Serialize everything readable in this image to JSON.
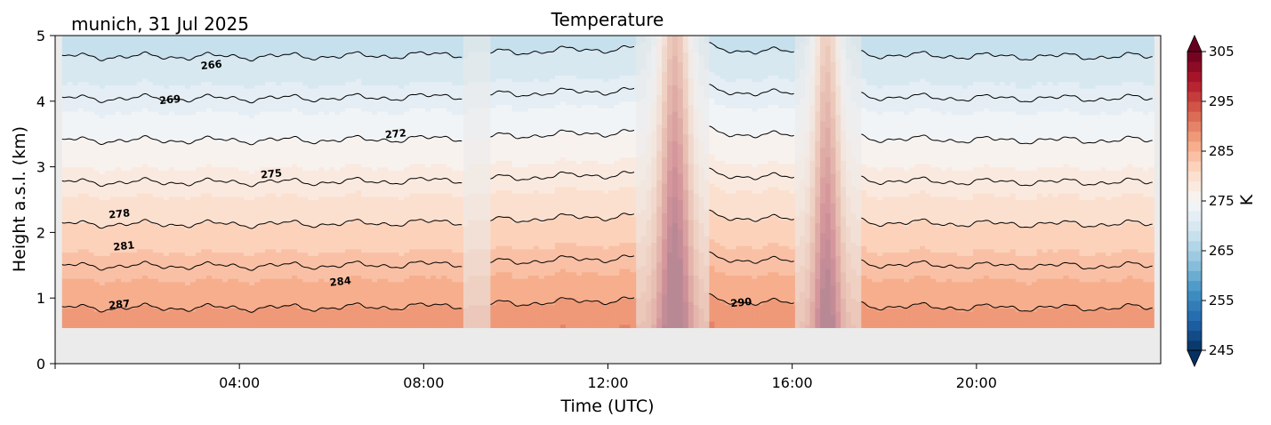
{
  "chart_data": {
    "type": "heatmap",
    "title": "Temperature",
    "location_date": "munich, 31 Jul 2025",
    "xlabel": "Time (UTC)",
    "ylabel": "Height a.s.l. (km)",
    "x_unit": "hours UTC",
    "xlim": [
      0,
      24
    ],
    "ylim": [
      0,
      5
    ],
    "x_tick_values": [
      4,
      8,
      12,
      16,
      20
    ],
    "x_tick_labels": [
      "04:00",
      "08:00",
      "12:00",
      "16:00",
      "20:00"
    ],
    "y_tick_values": [
      0,
      1,
      2,
      3,
      4,
      5
    ],
    "y_tick_labels": [
      "0",
      "1",
      "2",
      "3",
      "4",
      "5"
    ],
    "ground_level_km": 0.55,
    "no_data_fill": "#ebebeb",
    "valid_segments": [
      {
        "start": 0.15,
        "end": 8.85
      },
      {
        "start": 9.45,
        "end": 12.6
      },
      {
        "start": 14.2,
        "end": 16.05
      },
      {
        "start": 17.5,
        "end": 23.85
      }
    ],
    "faded_intervals": [
      {
        "start": 8.85,
        "end": 9.45
      },
      {
        "start": 12.6,
        "end": 14.2
      },
      {
        "start": 16.05,
        "end": 17.5
      }
    ],
    "surface_temperature_K": 291,
    "lapse_rate_K_per_km": 4.7,
    "warm_plumes": [
      {
        "center": 13.45,
        "width": 0.35,
        "lift_km": 4.6
      },
      {
        "center": 16.75,
        "width": 0.3,
        "lift_km": 4.0
      }
    ],
    "contour_levels_K": [
      266,
      269,
      272,
      275,
      278,
      281,
      284,
      287,
      290
    ],
    "contour_labels": [
      {
        "text": "266",
        "x": 3.4,
        "y": 4.5
      },
      {
        "text": "269",
        "x": 2.5,
        "y": 3.97
      },
      {
        "text": "272",
        "x": 7.4,
        "y": 3.45
      },
      {
        "text": "275",
        "x": 4.7,
        "y": 2.84
      },
      {
        "text": "278",
        "x": 1.4,
        "y": 2.23
      },
      {
        "text": "281",
        "x": 1.5,
        "y": 1.74
      },
      {
        "text": "284",
        "x": 6.2,
        "y": 1.2
      },
      {
        "text": "287",
        "x": 1.4,
        "y": 0.85
      },
      {
        "text": "290",
        "x": 14.9,
        "y": 0.88
      }
    ],
    "colorbar": {
      "label": "K",
      "min": 245,
      "max": 305,
      "tick_values": [
        245,
        255,
        265,
        275,
        285,
        295,
        305
      ],
      "tick_labels": [
        "245",
        "255",
        "265",
        "275",
        "285",
        "295",
        "305"
      ],
      "colormap": "RdBu_r",
      "extend": "both",
      "levels": 30
    },
    "colormap_stops": [
      "#053061",
      "#2166ac",
      "#4393c3",
      "#92c5de",
      "#d1e5f0",
      "#f7f7f7",
      "#fddbc7",
      "#f4a582",
      "#d6604d",
      "#b2182b",
      "#67001f"
    ]
  }
}
